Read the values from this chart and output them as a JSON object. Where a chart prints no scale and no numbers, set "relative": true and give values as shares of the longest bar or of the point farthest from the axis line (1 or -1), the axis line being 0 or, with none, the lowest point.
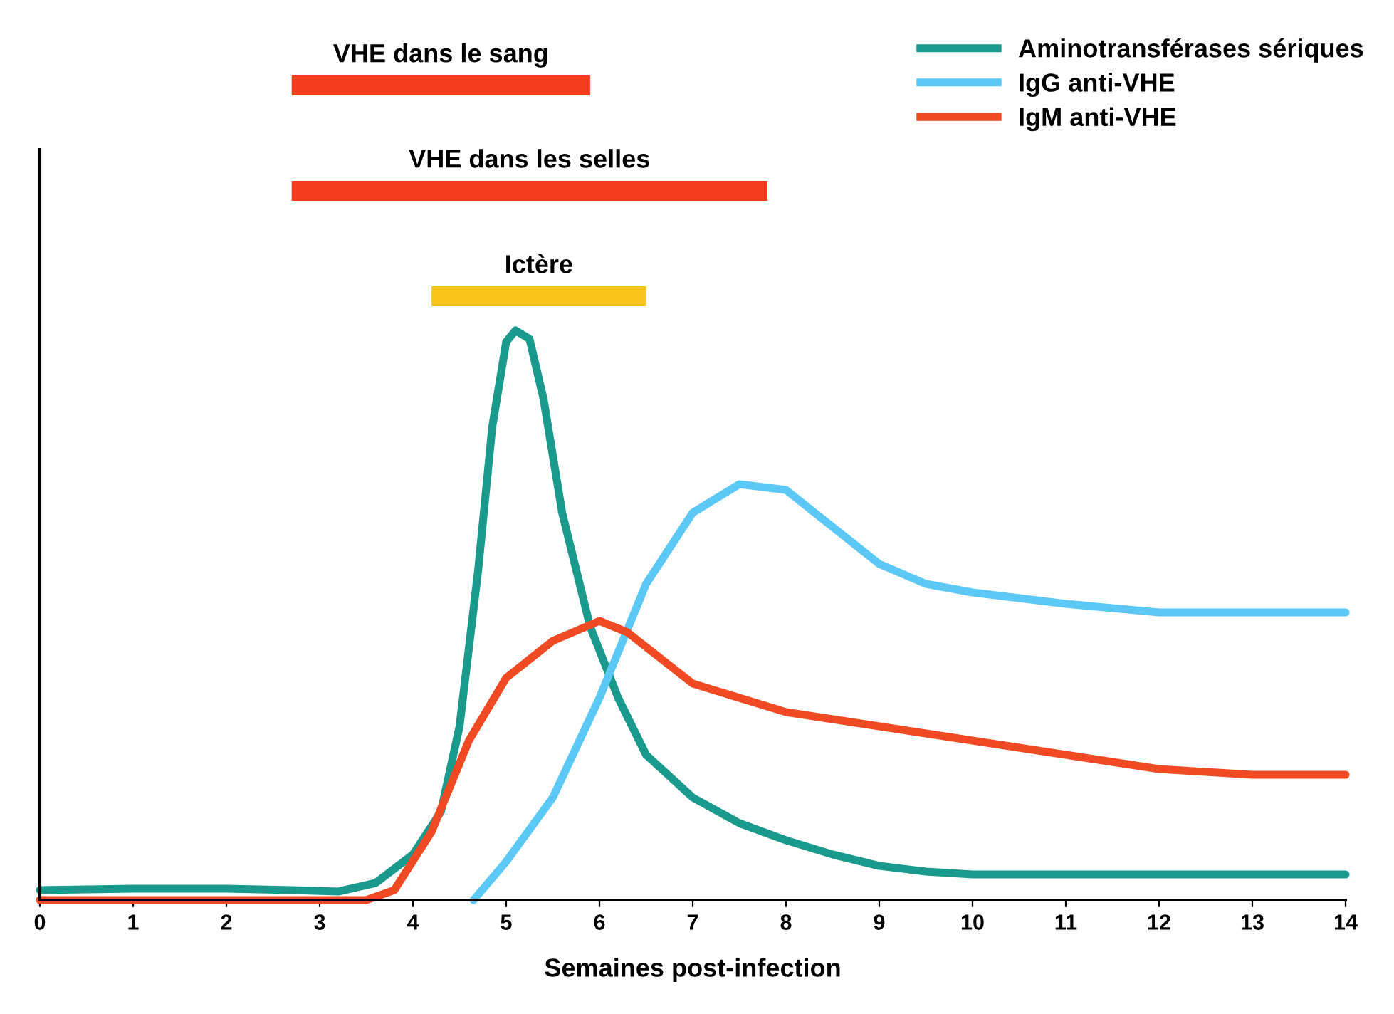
{
  "chart_data": [
    {
      "type": "bar",
      "orientation": "horizontal",
      "categories": [
        null,
        null,
        null
      ],
      "annotations": [
        "VHE dans le sang",
        "VHE dans les selles",
        "Ictère"
      ],
      "xticks": [
        0,
        1,
        2,
        3,
        4,
        5,
        6,
        7,
        8,
        9,
        10,
        11,
        12,
        13,
        14
      ],
      "base": [
        2.7,
        2.7,
        4.2
      ],
      "values": [
        3.2,
        5.1,
        2.3
      ],
      "colors": [
        "#f23c1e",
        "#f23c1e",
        "#f7c21a"
      ],
      "xlim": [
        0,
        14
      ],
      "tick_labels": false
    },
    {
      "type": "line",
      "relative": true,
      "xlabel": "Semaines post-infection",
      "xlim": [
        0,
        14
      ],
      "xticks": [
        0,
        1,
        2,
        3,
        4,
        5,
        6,
        7,
        8,
        9,
        10,
        11,
        12,
        13,
        14
      ],
      "legend": "top right",
      "marker": "none",
      "line_style": "solid",
      "series": [
        {
          "name": "Aminotransférases sériques",
          "color": "#1a9a8c",
          "x": [
            0,
            1,
            2,
            2.7,
            3.2,
            3.6,
            4.0,
            4.3,
            4.5,
            4.7,
            4.85,
            5.0,
            5.1,
            5.25,
            5.4,
            5.6,
            5.9,
            6.2,
            6.5,
            7,
            7.5,
            8,
            8.5,
            9,
            9.5,
            10,
            11,
            12,
            13,
            14
          ],
          "values": [
            0.0175,
            0.02,
            0.02,
            0.0175,
            0.015,
            0.03,
            0.08,
            0.155,
            0.305,
            0.58,
            0.83,
            0.98,
            1.0,
            0.985,
            0.88,
            0.68,
            0.48,
            0.355,
            0.255,
            0.18,
            0.135,
            0.105,
            0.08,
            0.06,
            0.05,
            0.045,
            0.045,
            0.045,
            0.045,
            0.045
          ]
        },
        {
          "name": "IgG anti-VHE",
          "color": "#5bc8f5",
          "x": [
            4.65,
            5,
            5.5,
            6,
            6.5,
            7,
            7.5,
            8,
            8.5,
            9,
            9.5,
            10,
            11,
            12,
            13,
            14
          ],
          "values": [
            0,
            0.0675,
            0.18,
            0.355,
            0.555,
            0.68,
            0.73,
            0.72,
            0.655,
            0.59,
            0.555,
            0.54,
            0.52,
            0.505,
            0.505,
            0.505
          ]
        },
        {
          "name": "IgM anti-VHE",
          "color": "#f04a24",
          "x": [
            0,
            1,
            2,
            3,
            3.5,
            3.8,
            4.2,
            4.6,
            5,
            5.5,
            6,
            6.3,
            7,
            8,
            9,
            10,
            11,
            12,
            13,
            14
          ],
          "values": [
            0,
            0,
            0,
            0,
            0,
            0.0175,
            0.12,
            0.28,
            0.39,
            0.455,
            0.49,
            0.47,
            0.38,
            0.33,
            0.305,
            0.28,
            0.255,
            0.23,
            0.22,
            0.22
          ]
        }
      ]
    }
  ]
}
